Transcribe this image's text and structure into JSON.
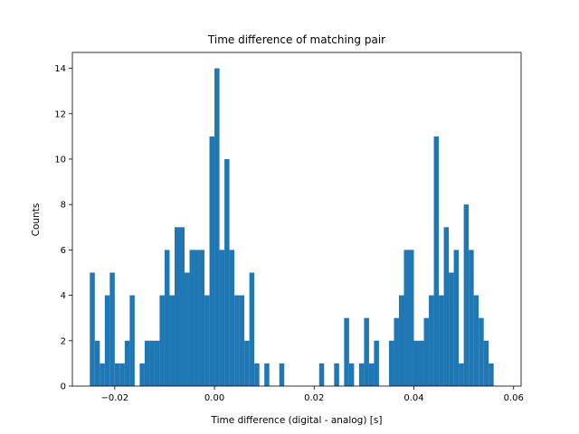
{
  "chart_data": {
    "type": "bar",
    "title": "Time difference of matching pair",
    "xlabel": "Time difference (digital - analog) [s]",
    "ylabel": "Counts",
    "xlim": [
      -0.0285,
      0.0615
    ],
    "ylim": [
      0,
      14.7
    ],
    "bin_width": 0.001,
    "grid": false,
    "x_ticks": [
      -0.02,
      0.0,
      0.02,
      0.04,
      0.06
    ],
    "x_tick_labels": [
      "−0.02",
      "0.00",
      "0.02",
      "0.04",
      "0.06"
    ],
    "y_ticks": [
      0,
      2,
      4,
      6,
      8,
      10,
      12,
      14
    ],
    "y_tick_labels": [
      "0",
      "2",
      "4",
      "6",
      "8",
      "10",
      "12",
      "14"
    ],
    "bins": [
      {
        "x": -0.0245,
        "count": 5
      },
      {
        "x": -0.0235,
        "count": 2
      },
      {
        "x": -0.0225,
        "count": 1
      },
      {
        "x": -0.0215,
        "count": 4
      },
      {
        "x": -0.0205,
        "count": 5
      },
      {
        "x": -0.0195,
        "count": 1
      },
      {
        "x": -0.0185,
        "count": 1
      },
      {
        "x": -0.0175,
        "count": 2
      },
      {
        "x": -0.0165,
        "count": 4
      },
      {
        "x": -0.0145,
        "count": 1
      },
      {
        "x": -0.0135,
        "count": 2
      },
      {
        "x": -0.0125,
        "count": 2
      },
      {
        "x": -0.0115,
        "count": 2
      },
      {
        "x": -0.0105,
        "count": 4
      },
      {
        "x": -0.0095,
        "count": 6
      },
      {
        "x": -0.0085,
        "count": 4
      },
      {
        "x": -0.0075,
        "count": 7
      },
      {
        "x": -0.0065,
        "count": 7
      },
      {
        "x": -0.0055,
        "count": 5
      },
      {
        "x": -0.0045,
        "count": 6
      },
      {
        "x": -0.0035,
        "count": 6
      },
      {
        "x": -0.0025,
        "count": 6
      },
      {
        "x": -0.0015,
        "count": 4
      },
      {
        "x": -0.0005,
        "count": 11
      },
      {
        "x": 0.0005,
        "count": 14
      },
      {
        "x": 0.0015,
        "count": 6
      },
      {
        "x": 0.0025,
        "count": 10
      },
      {
        "x": 0.0035,
        "count": 6
      },
      {
        "x": 0.0045,
        "count": 4
      },
      {
        "x": 0.0055,
        "count": 4
      },
      {
        "x": 0.0065,
        "count": 2
      },
      {
        "x": 0.0075,
        "count": 5
      },
      {
        "x": 0.0085,
        "count": 1
      },
      {
        "x": 0.0105,
        "count": 1
      },
      {
        "x": 0.0135,
        "count": 1
      },
      {
        "x": 0.0215,
        "count": 1
      },
      {
        "x": 0.0245,
        "count": 1
      },
      {
        "x": 0.0265,
        "count": 3
      },
      {
        "x": 0.0275,
        "count": 1
      },
      {
        "x": 0.0295,
        "count": 1
      },
      {
        "x": 0.0305,
        "count": 3
      },
      {
        "x": 0.0315,
        "count": 1
      },
      {
        "x": 0.0325,
        "count": 2
      },
      {
        "x": 0.0355,
        "count": 2
      },
      {
        "x": 0.0365,
        "count": 3
      },
      {
        "x": 0.0375,
        "count": 4
      },
      {
        "x": 0.0385,
        "count": 6
      },
      {
        "x": 0.0395,
        "count": 6
      },
      {
        "x": 0.0405,
        "count": 2
      },
      {
        "x": 0.0415,
        "count": 2
      },
      {
        "x": 0.0425,
        "count": 3
      },
      {
        "x": 0.0435,
        "count": 4
      },
      {
        "x": 0.0445,
        "count": 11
      },
      {
        "x": 0.0455,
        "count": 4
      },
      {
        "x": 0.0465,
        "count": 7
      },
      {
        "x": 0.0475,
        "count": 5
      },
      {
        "x": 0.0485,
        "count": 6
      },
      {
        "x": 0.0495,
        "count": 1
      },
      {
        "x": 0.0505,
        "count": 8
      },
      {
        "x": 0.0515,
        "count": 6
      },
      {
        "x": 0.0525,
        "count": 4
      },
      {
        "x": 0.0535,
        "count": 3
      },
      {
        "x": 0.0545,
        "count": 2
      },
      {
        "x": 0.0555,
        "count": 1
      }
    ],
    "colors": {
      "bar": "#1f77b4"
    }
  }
}
